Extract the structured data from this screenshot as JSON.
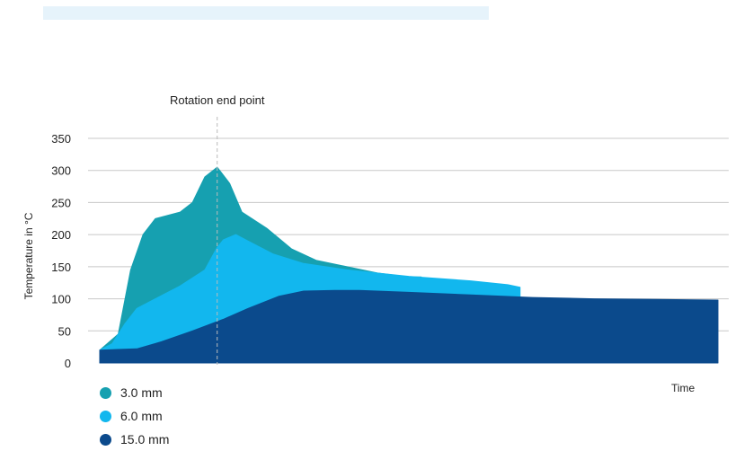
{
  "chart_data": {
    "type": "area",
    "annotation": "Rotation end point",
    "annotation_x": 19,
    "xlabel": "Time",
    "ylabel": "Temperature in °C",
    "ylim": [
      0,
      350
    ],
    "yticks": [
      0,
      50,
      100,
      150,
      200,
      250,
      300,
      350
    ],
    "xlim": [
      0,
      100
    ],
    "grid": true,
    "legend_position": "bottom-left",
    "series": [
      {
        "name": "3.0 mm",
        "color": "#16a0b0",
        "points": [
          [
            0,
            20
          ],
          [
            3,
            45
          ],
          [
            5,
            145
          ],
          [
            7,
            200
          ],
          [
            9,
            225
          ],
          [
            13,
            235
          ],
          [
            15,
            250
          ],
          [
            17,
            290
          ],
          [
            19,
            305
          ],
          [
            21,
            280
          ],
          [
            23,
            235
          ],
          [
            27,
            210
          ],
          [
            31,
            178
          ],
          [
            35,
            160
          ],
          [
            40,
            150
          ],
          [
            45,
            140
          ],
          [
            50,
            134
          ],
          [
            52,
            134
          ],
          [
            52,
            125
          ]
        ]
      },
      {
        "name": "6.0 mm",
        "color": "#12b7ee",
        "points": [
          [
            0,
            20
          ],
          [
            2,
            30
          ],
          [
            4,
            60
          ],
          [
            6,
            85
          ],
          [
            9,
            100
          ],
          [
            13,
            120
          ],
          [
            17,
            145
          ],
          [
            19,
            180
          ],
          [
            20,
            192
          ],
          [
            22,
            200
          ],
          [
            24,
            190
          ],
          [
            28,
            170
          ],
          [
            33,
            155
          ],
          [
            40,
            145
          ],
          [
            50,
            135
          ],
          [
            60,
            128
          ],
          [
            66,
            122
          ],
          [
            68,
            118
          ],
          [
            68,
            100
          ]
        ]
      },
      {
        "name": "15.0 mm",
        "color": "#0b4a8c",
        "points": [
          [
            0,
            20
          ],
          [
            6,
            22
          ],
          [
            10,
            33
          ],
          [
            15,
            50
          ],
          [
            20,
            68
          ],
          [
            24,
            85
          ],
          [
            29,
            104
          ],
          [
            33,
            112
          ],
          [
            38,
            113
          ],
          [
            42,
            113
          ],
          [
            50,
            110
          ],
          [
            60,
            106
          ],
          [
            70,
            102
          ],
          [
            80,
            100
          ],
          [
            90,
            99
          ],
          [
            100,
            98
          ]
        ]
      }
    ]
  }
}
